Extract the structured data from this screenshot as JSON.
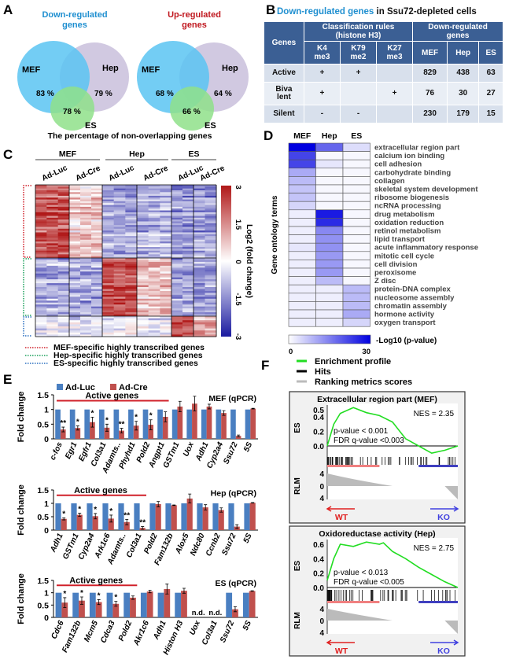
{
  "panels": {
    "A": "A",
    "B": "B",
    "C": "C",
    "D": "D",
    "E": "E",
    "F": "F"
  },
  "panel_a": {
    "down": {
      "title_line1": "Down-regulated",
      "title_line2": "genes",
      "color": "#1f8fd0",
      "mef": "MEF",
      "hep": "Hep",
      "es": "ES",
      "mef_pct": "83 %",
      "hep_pct": "79 %",
      "es_pct": "78 %"
    },
    "up": {
      "title_line1": "Up-regulated",
      "title_line2": "genes",
      "color": "#c0181f",
      "mef": "MEF",
      "hep": "Hep",
      "es": "ES",
      "mef_pct": "68 %",
      "hep_pct": "64 %",
      "es_pct": "66 %"
    },
    "caption": "The percentage of non-overlapping genes",
    "colors": {
      "mef": "#5bc4f2",
      "hep": "#c9bfdc",
      "es": "#8fe08a"
    }
  },
  "panel_b": {
    "title_highlight": "Down-regulated genes",
    "title_rest": " in Ssu72-depleted cells",
    "header": {
      "genes": "Genes",
      "rules_line1": "Classification rules",
      "rules_line2": "(histone H3)",
      "down_line1": "Down-regulated",
      "down_line2": "genes",
      "marks": [
        [
          "K4",
          "me3"
        ],
        [
          "K79",
          "me2"
        ],
        [
          "K27",
          "me3"
        ]
      ],
      "cells": [
        "MEF",
        "Hep",
        "ES"
      ]
    },
    "rows": [
      {
        "label": [
          "Active"
        ],
        "marks": [
          "+",
          "+",
          ""
        ],
        "values": [
          "829",
          "438",
          "63"
        ]
      },
      {
        "label": [
          "Biva",
          "lent"
        ],
        "marks": [
          "+",
          "",
          "+"
        ],
        "values": [
          "76",
          "30",
          "27"
        ]
      },
      {
        "label": [
          "Silent"
        ],
        "marks": [
          "-",
          "-",
          ""
        ],
        "values": [
          "230",
          "179",
          "15"
        ]
      }
    ]
  },
  "chart_data": [
    {
      "id": "C",
      "type": "heatmap",
      "groups": [
        {
          "label": "MEF",
          "conditions": [
            "Ad-Luc",
            "Ad-Cre"
          ]
        },
        {
          "label": "Hep",
          "conditions": [
            "Ad-Luc",
            "Ad-Cre"
          ]
        },
        {
          "label": "ES",
          "conditions": [
            "Ad-Luc",
            "Ad-Cre"
          ]
        }
      ],
      "row_groups": [
        {
          "label": "MEF-specific highly transcribed genes",
          "color": "#d0202a",
          "block_means": [
            2.2,
            0.6,
            -1.2,
            -1.0,
            -1.4,
            -1.3
          ]
        },
        {
          "label": "Hep-specific highly transcribed genes",
          "color": "#1aa05a",
          "block_means": [
            -1.1,
            -1.1,
            2.3,
            0.8,
            -1.2,
            -1.2
          ]
        },
        {
          "label": "ES-specific highly transcribed genes",
          "color": "#2a6fc0",
          "block_means": [
            -0.6,
            -0.6,
            -0.3,
            -0.5,
            2.0,
            1.0
          ]
        }
      ],
      "colorbar": {
        "label": "Log2 (fold change)",
        "ticks": [
          "3",
          "1.5",
          "0",
          "-1.5",
          "-3"
        ],
        "range": [
          -3,
          3
        ],
        "low": "#1a1aa0",
        "mid": "#ffffff",
        "high": "#b01818"
      }
    },
    {
      "id": "D",
      "type": "heatmap",
      "columns": [
        "MEF",
        "Hep",
        "ES"
      ],
      "ylabel": "Gene ontology terms",
      "rows": [
        "extracellular region part",
        "calcium ion binding",
        "cell adhesion",
        "carbohydrate binding",
        "collagen",
        "skeletal system development",
        "ribosome biogenesis",
        "ncRNA processing",
        "drug metabolism",
        "oxidation reduction",
        "retinol metabolism",
        "lipid transport",
        "acute inflammatory response",
        "mitotic cell cycle",
        "cell division",
        "peroxisome",
        "Z disc",
        "protein-DNA complex",
        "nucleosome assembly",
        "chromatin assembly",
        "hormone activity",
        "oxygen transport"
      ],
      "values": [
        [
          30,
          18,
          4
        ],
        [
          22,
          1,
          1
        ],
        [
          22,
          3,
          1
        ],
        [
          10,
          1,
          1
        ],
        [
          8,
          1,
          1
        ],
        [
          7,
          1,
          1
        ],
        [
          7,
          1,
          1
        ],
        [
          5,
          1,
          1
        ],
        [
          2,
          27,
          1
        ],
        [
          2,
          25,
          1
        ],
        [
          2,
          14,
          1
        ],
        [
          2,
          13,
          1
        ],
        [
          3,
          13,
          1
        ],
        [
          2,
          12,
          1
        ],
        [
          2,
          12,
          1
        ],
        [
          2,
          12,
          1
        ],
        [
          2,
          8,
          1
        ],
        [
          2,
          2,
          8
        ],
        [
          2,
          2,
          8
        ],
        [
          2,
          2,
          8
        ],
        [
          2,
          2,
          10
        ],
        [
          2,
          2,
          5
        ]
      ],
      "colorbar": {
        "label": "-Log10 (p-value)",
        "min": "0",
        "max": "30",
        "low": "#ffffff",
        "high": "#0000e0"
      }
    },
    {
      "id": "E-MEF",
      "type": "bar",
      "title": "MEF (qPCR)",
      "ylabel": "Fold change",
      "ylim": [
        0,
        1.5
      ],
      "yticks": [
        "0",
        "0.5",
        "1",
        "1.5"
      ],
      "legend": [
        "Ad-Luc",
        "Ad-Cre"
      ],
      "active_label": "Active genes",
      "active_count": 8,
      "categories": [
        "c-fos",
        "Egr1",
        "Egfr1",
        "Col3a1",
        "Adamts..",
        "Phyhd1",
        "Pold2",
        "Angpt1",
        "GSTm1",
        "Uox",
        "Adh1",
        "Cyp2a4",
        "Ssu72",
        "5S"
      ],
      "series": [
        {
          "name": "Ad-Luc",
          "values": [
            1,
            1,
            1,
            1,
            1,
            1,
            1,
            1,
            1,
            1,
            1,
            1,
            1,
            1
          ]
        },
        {
          "name": "Ad-Cre",
          "values": [
            0.32,
            0.37,
            0.57,
            0.38,
            0.28,
            0.45,
            0.48,
            0.75,
            1.1,
            1.2,
            1.1,
            0.88,
            0.1,
            1.03
          ],
          "errors": [
            0.08,
            0.07,
            0.17,
            0.12,
            0.08,
            0.15,
            0.17,
            0.17,
            0.18,
            0.25,
            0.08,
            0.08,
            0.03,
            0.01
          ]
        }
      ],
      "significance": [
        "**",
        "*",
        "*",
        "*",
        "**",
        "*",
        "*",
        "",
        "",
        "",
        "",
        "",
        "",
        ""
      ]
    },
    {
      "id": "E-Hep",
      "type": "bar",
      "title": "Hep (qPCR)",
      "ylabel": "Fold change",
      "ylim": [
        0,
        1.5
      ],
      "yticks": [
        "0",
        "0.5",
        "1",
        "1.5"
      ],
      "active_label": "Active genes",
      "active_count": 6,
      "categories": [
        "Adh1",
        "GSTm1",
        "Cyp2a4",
        "Ark1c6",
        "Adamts..",
        "Col3a1",
        "Pold2",
        "Fam132b",
        "Alox5",
        "Ndc80",
        "Ccnb2",
        "Ssu72",
        "5S"
      ],
      "series": [
        {
          "name": "Ad-Luc",
          "values": [
            1,
            1,
            1,
            1,
            1,
            1,
            1,
            1,
            1,
            1,
            1,
            1,
            1
          ]
        },
        {
          "name": "Ad-Cre",
          "values": [
            0.42,
            0.57,
            0.52,
            0.43,
            0.3,
            0.08,
            0.97,
            0.93,
            1.18,
            0.85,
            0.75,
            0.13,
            1.02
          ],
          "errors": [
            0.04,
            0.06,
            0.1,
            0.13,
            0.1,
            0.05,
            0.1,
            0.01,
            0.17,
            0.1,
            0.08,
            0.07,
            0.01
          ]
        }
      ],
      "significance": [
        "*",
        "*",
        "*",
        "*",
        "**",
        "**",
        "",
        "",
        "",
        "",
        "",
        "",
        ""
      ]
    },
    {
      "id": "E-ES",
      "type": "bar",
      "title": "ES (qPCR)",
      "ylabel": "Fold change",
      "ylim": [
        0,
        1.5
      ],
      "yticks": [
        "0",
        "0.5",
        "1",
        "1.5"
      ],
      "active_label": "Active genes",
      "active_count": 5,
      "categories": [
        "Cdc6",
        "Fam132b",
        "Mcm5",
        "Cdca3",
        "Pold2",
        "Akr1c6",
        "Adh1",
        "Histon H3",
        "Uox",
        "Col3a1",
        "Ssu72",
        "5S"
      ],
      "series": [
        {
          "name": "Ad-Luc",
          "values": [
            1,
            1,
            1,
            1,
            1,
            1,
            1,
            1,
            null,
            null,
            1,
            1
          ]
        },
        {
          "name": "Ad-Cre",
          "values": [
            0.6,
            0.68,
            0.62,
            0.55,
            0.8,
            1.05,
            1.15,
            1.08,
            null,
            null,
            0.33,
            1.07
          ],
          "errors": [
            0.2,
            0.15,
            0.1,
            0.1,
            0.07,
            0.05,
            0.2,
            0.1,
            null,
            null,
            0.1,
            0.01
          ]
        }
      ],
      "significance": [
        "*",
        "*",
        "*",
        "*",
        "",
        "",
        "",
        "",
        "n.d.",
        "n.d.",
        "",
        ""
      ]
    },
    {
      "id": "F-MEF",
      "type": "line",
      "title": "Extracellular region part (MEF)",
      "ylabel": "ES",
      "rlm_label": "RLM",
      "nes": "NES = 2.35",
      "pvalue": "p-value < 0.001",
      "fdr": "FDR q-value <0.003",
      "yticks": [
        "0.0",
        "0.2",
        "0.4",
        "0.5"
      ],
      "ylim": [
        -0.15,
        0.55
      ],
      "rlm_ticks": [
        "4",
        "0",
        "4"
      ],
      "left": "WT",
      "right": "KO",
      "x": [
        0,
        0.05,
        0.1,
        0.2,
        0.3,
        0.4,
        0.5,
        0.6,
        0.7,
        0.8,
        0.9,
        1
      ],
      "y": [
        0,
        0.3,
        0.45,
        0.53,
        0.46,
        0.42,
        0.33,
        0.1,
        0.0,
        -0.1,
        -0.06,
        0
      ]
    },
    {
      "id": "F-Hep",
      "type": "line",
      "title": "Oxidoreductase activity (Hep)",
      "ylabel": "ES",
      "rlm_label": "RLM",
      "nes": "NES = 2.75",
      "pvalue": "p-value < 0.013",
      "fdr": "FDR q-value <0.005",
      "yticks": [
        "0.0",
        "0.2",
        "0.4",
        "0.6"
      ],
      "ylim": [
        0,
        0.66
      ],
      "rlm_ticks": [
        "4",
        "0",
        "4"
      ],
      "left": "WT",
      "right": "KO",
      "x": [
        0,
        0.05,
        0.1,
        0.2,
        0.3,
        0.4,
        0.43,
        0.5,
        0.6,
        0.7,
        0.8,
        0.9,
        1
      ],
      "y": [
        0.1,
        0.4,
        0.6,
        0.57,
        0.63,
        0.6,
        0.62,
        0.5,
        0.4,
        0.28,
        0.18,
        0.08,
        0
      ]
    }
  ],
  "panel_f_legend": [
    {
      "label": "Enrichment profile",
      "color": "#22dd22"
    },
    {
      "label": "Hits",
      "color": "#000000"
    },
    {
      "label": "Ranking metrics scores",
      "color": "#bbbbbb"
    }
  ],
  "colors": {
    "luc": "#4a7fc1",
    "cre": "#c0504d",
    "active": "#d0202a",
    "wt": "#e02020",
    "ko": "#4040e0"
  }
}
